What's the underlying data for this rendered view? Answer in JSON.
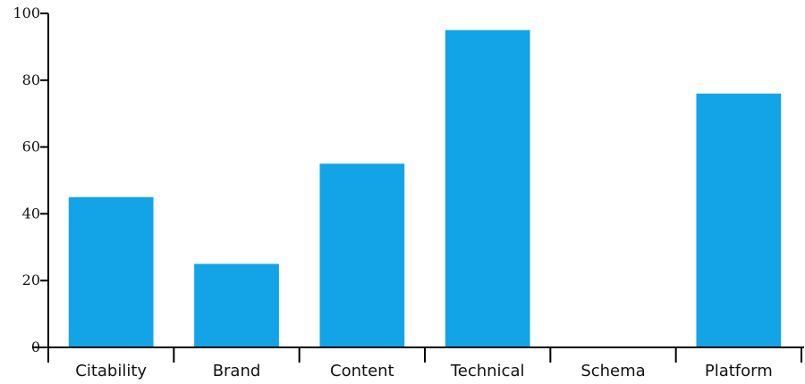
{
  "chart_data": {
    "type": "bar",
    "categories": [
      "Citability",
      "Brand",
      "Content",
      "Technical",
      "Schema",
      "Platform"
    ],
    "values": [
      45,
      25,
      55,
      95,
      0,
      76
    ],
    "ylim": [
      0,
      100
    ],
    "yticks": [
      "0",
      "20",
      "40",
      "60",
      "80",
      "100"
    ],
    "bar_color": "#12a4e6",
    "title": "",
    "xlabel": "",
    "ylabel": "",
    "grid": false,
    "legend": "none"
  }
}
